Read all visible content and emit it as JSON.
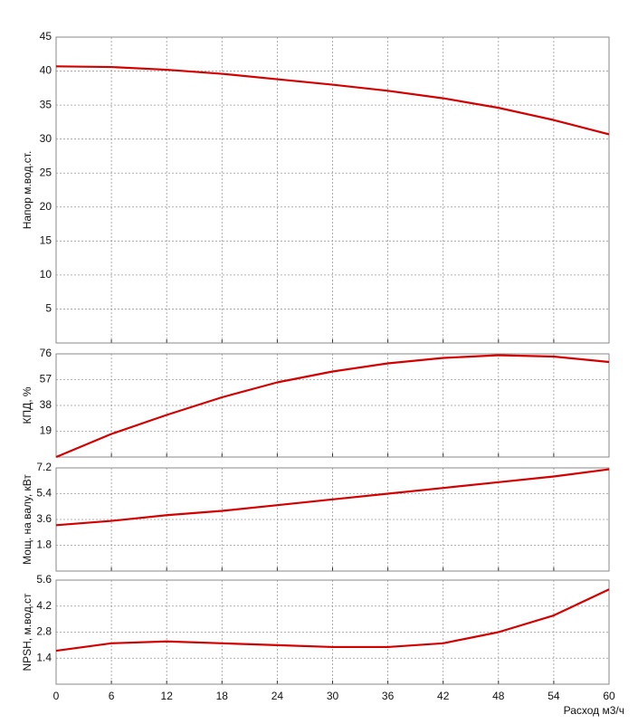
{
  "chart_data": [
    {
      "type": "line",
      "ylabel": "Напор м.вод.ст.",
      "x": [
        0,
        6,
        12,
        18,
        24,
        30,
        36,
        42,
        48,
        54,
        60
      ],
      "series": [
        {
          "color": "#d40000",
          "values": [
            40.7,
            40.6,
            40.2,
            39.6,
            38.8,
            38.0,
            37.1,
            36.0,
            34.6,
            32.8,
            30.7
          ]
        }
      ],
      "xlim": [
        0,
        60
      ],
      "xticks": [
        0,
        6,
        12,
        18,
        24,
        30,
        36,
        42,
        48,
        54,
        60
      ],
      "ylim": [
        0,
        45
      ],
      "yticks": [
        5,
        10,
        15,
        20,
        25,
        30,
        35,
        40,
        45
      ],
      "grid": true
    },
    {
      "type": "line",
      "ylabel": "КПД, %",
      "x": [
        0,
        6,
        12,
        18,
        24,
        30,
        36,
        42,
        48,
        54,
        60
      ],
      "series": [
        {
          "color": "#d40000",
          "values": [
            0,
            17,
            31,
            44,
            55,
            63,
            69,
            73,
            75,
            74,
            70
          ]
        }
      ],
      "xlim": [
        0,
        60
      ],
      "xticks": [
        0,
        6,
        12,
        18,
        24,
        30,
        36,
        42,
        48,
        54,
        60
      ],
      "ylim": [
        0,
        76
      ],
      "yticks": [
        19,
        38,
        57,
        76
      ],
      "grid": true
    },
    {
      "type": "line",
      "ylabel": "Мощ. на валу, кВт",
      "x": [
        0,
        6,
        12,
        18,
        24,
        30,
        36,
        42,
        48,
        54,
        60
      ],
      "series": [
        {
          "color": "#d40000",
          "values": [
            3.2,
            3.5,
            3.9,
            4.2,
            4.6,
            5.0,
            5.4,
            5.8,
            6.2,
            6.6,
            7.1
          ]
        }
      ],
      "xlim": [
        0,
        60
      ],
      "xticks": [
        0,
        6,
        12,
        18,
        24,
        30,
        36,
        42,
        48,
        54,
        60
      ],
      "ylim": [
        0,
        7.2
      ],
      "yticks": [
        1.8,
        3.6,
        5.4,
        7.2
      ],
      "grid": true
    },
    {
      "type": "line",
      "ylabel": "NPSH, м.вод.ст",
      "xlabel": "Расход м3/ч",
      "x": [
        0,
        6,
        12,
        18,
        24,
        30,
        36,
        42,
        48,
        54,
        60
      ],
      "series": [
        {
          "color": "#d40000",
          "values": [
            1.8,
            2.2,
            2.3,
            2.2,
            2.1,
            2.0,
            2.0,
            2.2,
            2.8,
            3.7,
            5.1
          ]
        }
      ],
      "xlim": [
        0,
        60
      ],
      "xticks": [
        0,
        6,
        12,
        18,
        24,
        30,
        36,
        42,
        48,
        54,
        60
      ],
      "ylim": [
        0,
        5.6
      ],
      "yticks": [
        1.4,
        2.8,
        4.2,
        5.6
      ],
      "grid": true
    }
  ]
}
